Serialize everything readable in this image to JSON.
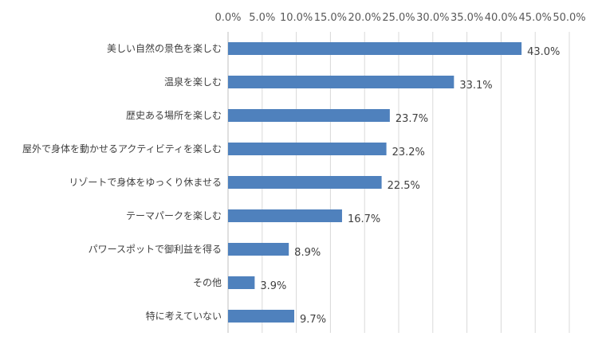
{
  "chart_data": {
    "type": "bar",
    "orientation": "horizontal",
    "title": "",
    "xlabel": "",
    "ylabel": "",
    "xlim": [
      0,
      50
    ],
    "tick_values": [
      0,
      5,
      10,
      15,
      20,
      25,
      30,
      35,
      40,
      45,
      50
    ],
    "tick_labels": [
      "0.0%",
      "5.0%",
      "10.0%",
      "15.0%",
      "20.0%",
      "25.0%",
      "30.0%",
      "35.0%",
      "40.0%",
      "45.0%",
      "50.0%"
    ],
    "axis_position": "top",
    "grid": true,
    "bar_color": "#4f81bd",
    "categories": [
      "美しい自然の景色を楽しむ",
      "温泉を楽しむ",
      "歴史ある場所を楽しむ",
      "屋外で身体を動かせるアクティビティを楽しむ",
      "リゾートで身体をゆっくり休ませる",
      "テーマパークを楽しむ",
      "パワースポットで御利益を得る",
      "その他",
      "特に考えていない"
    ],
    "values": [
      43.0,
      33.1,
      23.7,
      23.2,
      22.5,
      16.7,
      8.9,
      3.9,
      9.7
    ],
    "value_labels": [
      "43.0%",
      "33.1%",
      "23.7%",
      "23.2%",
      "22.5%",
      "16.7%",
      "8.9%",
      "3.9%",
      "9.7%"
    ]
  }
}
